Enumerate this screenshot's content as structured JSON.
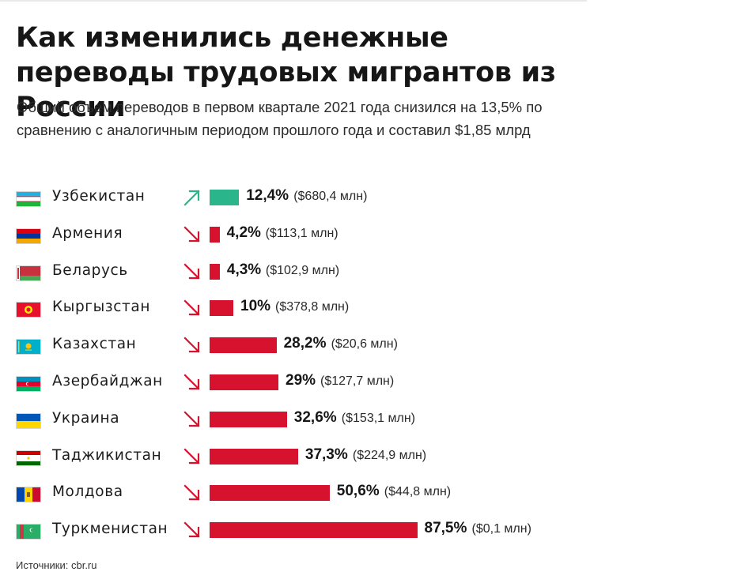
{
  "header": {
    "title": "Как изменились денежные переводы трудовых мигрантов из России",
    "subtitle": "Общий объем переводов в первом квартале 2021 года снизился на 13,5% по сравнению с аналогичным периодом прошлого года и составил $1,85 млрд"
  },
  "footer": {
    "source": "Источники: cbr.ru"
  },
  "colors": {
    "increase": "#2bb58a",
    "decrease": "#d7122f",
    "text": "#161616"
  },
  "chart_data": {
    "type": "bar",
    "orientation": "horizontal",
    "title": "Как изменились денежные переводы трудовых мигрантов из России",
    "subtitle": "Общий объем переводов в первом квартале 2021 года снизился на 13,5% по сравнению с аналогичным периодом прошлого года и составил $1,85 млрд",
    "xlim": [
      0,
      87.5
    ],
    "rows": [
      {
        "country": "Узбекистан",
        "direction": "up",
        "change": 12.4,
        "change_label": "12,4%",
        "amount_label": "($680,4 млн)",
        "flag": "uzbekistan-flag-icon"
      },
      {
        "country": "Армения",
        "direction": "down",
        "change": 4.2,
        "change_label": "4,2%",
        "amount_label": "($113,1 млн)",
        "flag": "armenia-flag-icon"
      },
      {
        "country": "Беларусь",
        "direction": "down",
        "change": 4.3,
        "change_label": "4,3%",
        "amount_label": "($102,9 млн)",
        "flag": "belarus-flag-icon"
      },
      {
        "country": "Кыргызстан",
        "direction": "down",
        "change": 10,
        "change_label": "10%",
        "amount_label": "($378,8 млн)",
        "flag": "kyrgyzstan-flag-icon"
      },
      {
        "country": "Казахстан",
        "direction": "down",
        "change": 28.2,
        "change_label": "28,2%",
        "amount_label": "($20,6 млн)",
        "flag": "kazakhstan-flag-icon"
      },
      {
        "country": "Азербайджан",
        "direction": "down",
        "change": 29,
        "change_label": "29%",
        "amount_label": "($127,7 млн)",
        "flag": "azerbaijan-flag-icon"
      },
      {
        "country": "Украина",
        "direction": "down",
        "change": 32.6,
        "change_label": "32,6%",
        "amount_label": "($153,1 млн)",
        "flag": "ukraine-flag-icon"
      },
      {
        "country": "Таджикистан",
        "direction": "down",
        "change": 37.3,
        "change_label": "37,3%",
        "amount_label": "($224,9 млн)",
        "flag": "tajikistan-flag-icon"
      },
      {
        "country": "Молдова",
        "direction": "down",
        "change": 50.6,
        "change_label": "50,6%",
        "amount_label": "($44,8 млн)",
        "flag": "moldova-flag-icon"
      },
      {
        "country": "Туркменистан",
        "direction": "down",
        "change": 87.5,
        "change_label": "87,5%",
        "amount_label": "($0,1 млн)",
        "flag": "turkmenistan-flag-icon"
      }
    ]
  }
}
